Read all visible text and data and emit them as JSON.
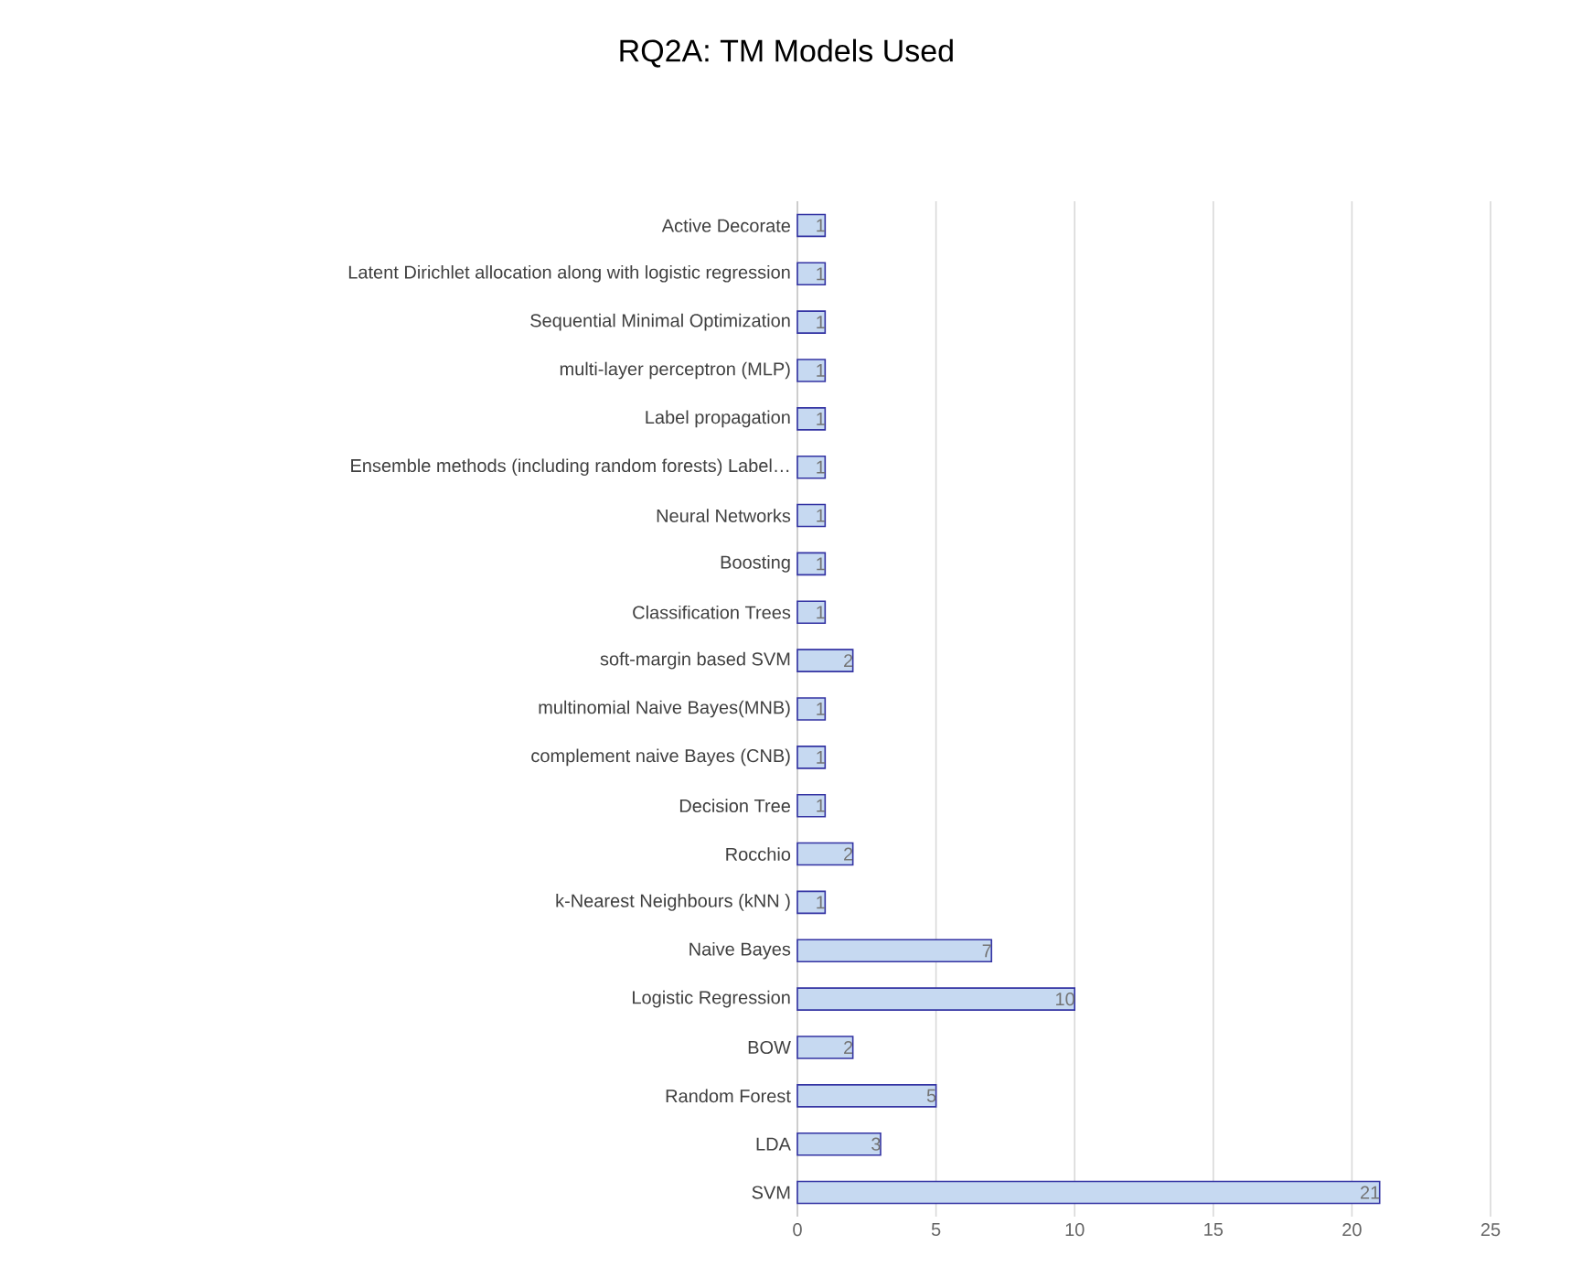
{
  "chart_data": {
    "type": "bar",
    "orientation": "horizontal",
    "title": "RQ2A: TM Models Used",
    "categories": [
      "Active Decorate",
      "Latent Dirichlet allocation along with logistic regression",
      "Sequential Minimal Optimization",
      "multi-layer perceptron (MLP)",
      "Label propagation",
      "Ensemble methods (including random forests) Label…",
      "Neural Networks",
      "Boosting",
      "Classification Trees",
      "soft-margin based  SVM",
      "multinomial  Naive Bayes(MNB)",
      "complement naive Bayes (CNB)",
      "Decision Tree",
      "Rocchio",
      "k-Nearest Neighbours (kNN )",
      "Naive Bayes",
      "Logistic Regression",
      "BOW",
      "Random Forest",
      "LDA",
      "SVM"
    ],
    "values": [
      1,
      1,
      1,
      1,
      1,
      1,
      1,
      1,
      1,
      2,
      1,
      1,
      1,
      2,
      1,
      7,
      10,
      2,
      5,
      3,
      21
    ],
    "color": "#c6d9f1",
    "xlim": [
      0,
      25
    ],
    "xticks": [
      0,
      5,
      10,
      15,
      20,
      25
    ],
    "grid": "x",
    "data_labels": true
  }
}
